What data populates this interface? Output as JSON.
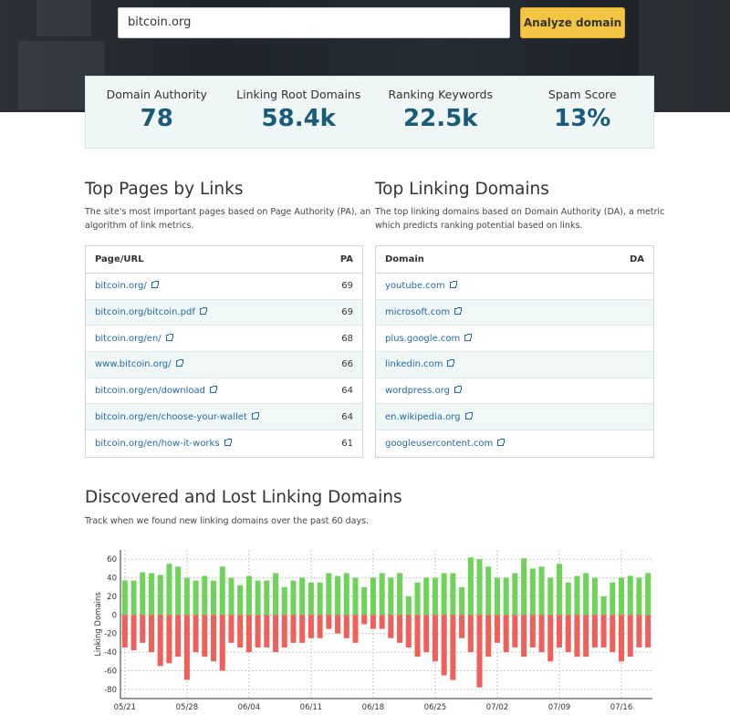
{
  "search": {
    "value": "bitcoin.org",
    "button_label": "Analyze domain"
  },
  "metrics": [
    {
      "label": "Domain Authority",
      "value": "78"
    },
    {
      "label": "Linking Root Domains",
      "value": "58.4k"
    },
    {
      "label": "Ranking Keywords",
      "value": "22.5k"
    },
    {
      "label": "Spam Score",
      "value": "13%"
    }
  ],
  "top_pages": {
    "title": "Top Pages by Links",
    "description_line1": "The site's most important pages based on Page Authority (PA), an",
    "description_line2": "algorithm of link metrics.",
    "col_url": "Page/URL",
    "col_score": "PA",
    "rows": [
      {
        "url": "bitcoin.org/",
        "score": "69"
      },
      {
        "url": "bitcoin.org/bitcoin.pdf",
        "score": "69"
      },
      {
        "url": "bitcoin.org/en/",
        "score": "68"
      },
      {
        "url": "www.bitcoin.org/",
        "score": "66"
      },
      {
        "url": "bitcoin.org/en/download",
        "score": "64"
      },
      {
        "url": "bitcoin.org/en/choose-your-wallet",
        "score": "64"
      },
      {
        "url": "bitcoin.org/en/how-it-works",
        "score": "61"
      }
    ]
  },
  "top_domains": {
    "title": "Top Linking Domains",
    "description_line1": "The top linking domains based on Domain Authority (DA), a metric",
    "description_line2": "which predicts ranking potential based on links.",
    "col_domain": "Domain",
    "col_score": "DA",
    "rows": [
      {
        "domain": "youtube.com"
      },
      {
        "domain": "microsoft.com"
      },
      {
        "domain": "plus.google.com"
      },
      {
        "domain": "linkedin.com"
      },
      {
        "domain": "wordpress.org"
      },
      {
        "domain": "en.wikipedia.org"
      },
      {
        "domain": "googleusercontent.com"
      }
    ]
  },
  "discovered": {
    "title": "Discovered and Lost Linking Domains",
    "description": "Track when we found new linking domains over the past 60 days."
  },
  "colors": {
    "discovered": "#6fd35a",
    "lost": "#f0605a",
    "accent": "#f4c542",
    "metric": "#1a5a7a",
    "link": "#1d6aa5"
  },
  "chart_data": {
    "type": "bar",
    "ylabel": "Linking Domains",
    "ylim": [
      -90,
      70
    ],
    "yticks": [
      -80,
      -60,
      -40,
      -20,
      0,
      20,
      40,
      60
    ],
    "xtick_labels": [
      "05/21",
      "05/28",
      "06/04",
      "06/11",
      "06/18",
      "06/25",
      "07/02",
      "07/09",
      "07/16"
    ],
    "xtick_positions": [
      0,
      7,
      14,
      21,
      28,
      35,
      42,
      49,
      56
    ],
    "grid": true,
    "series": [
      {
        "name": "Discovered",
        "values": [
          37,
          37,
          46,
          45,
          43,
          55,
          52,
          40,
          37,
          42,
          37,
          52,
          40,
          32,
          42,
          37,
          37,
          45,
          30,
          37,
          40,
          35,
          35,
          45,
          42,
          45,
          40,
          30,
          40,
          45,
          40,
          45,
          20,
          35,
          40,
          40,
          45,
          45,
          30,
          62,
          60,
          52,
          40,
          40,
          45,
          61,
          50,
          52,
          40,
          55,
          35,
          42,
          45,
          40,
          20,
          35,
          40,
          42,
          40,
          45
        ]
      },
      {
        "name": "Lost",
        "values": [
          -35,
          -38,
          -30,
          -40,
          -55,
          -52,
          -45,
          -70,
          -40,
          -45,
          -50,
          -60,
          -30,
          -35,
          -40,
          -35,
          -35,
          -40,
          -35,
          -30,
          -30,
          -25,
          -25,
          -15,
          -20,
          -25,
          -30,
          -10,
          -15,
          -15,
          -25,
          -30,
          -35,
          -45,
          -40,
          -50,
          -65,
          -70,
          -25,
          -40,
          -78,
          -45,
          -30,
          -40,
          -35,
          -45,
          -35,
          -40,
          -50,
          -35,
          -40,
          -45,
          -45,
          -35,
          -35,
          -40,
          -50,
          -45,
          -35,
          -35
        ]
      }
    ]
  }
}
